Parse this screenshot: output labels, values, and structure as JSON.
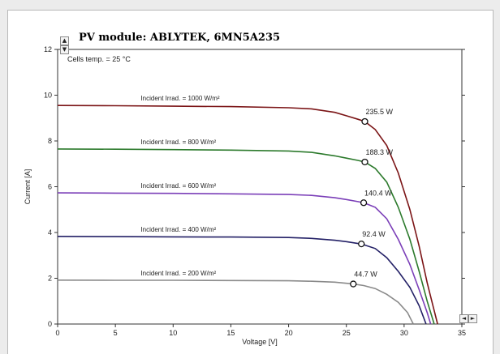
{
  "chart_data": {
    "type": "line",
    "title": "PV module: ABLYTEK, 6MN5A235",
    "annotation": "Cells temp. = 25 °C",
    "xlabel": "Voltage [V]",
    "ylabel": "Current [A]",
    "xlim": [
      0,
      35
    ],
    "ylim": [
      0,
      12
    ],
    "xticks": [
      0,
      5,
      10,
      15,
      20,
      25,
      30,
      35
    ],
    "yticks": [
      0,
      2,
      4,
      6,
      8,
      10,
      12
    ],
    "grid": false,
    "series": [
      {
        "name": "Incident Irrad. = 1000 W/m²",
        "color": "#7b1416",
        "points": [
          [
            0,
            9.55
          ],
          [
            5,
            9.54
          ],
          [
            10,
            9.52
          ],
          [
            15,
            9.5
          ],
          [
            20,
            9.45
          ],
          [
            22,
            9.4
          ],
          [
            24,
            9.25
          ],
          [
            25,
            9.1
          ],
          [
            26,
            8.95
          ],
          [
            26.6,
            8.85
          ],
          [
            27.5,
            8.5
          ],
          [
            28.5,
            7.8
          ],
          [
            29.5,
            6.6
          ],
          [
            30.5,
            5.0
          ],
          [
            31.3,
            3.4
          ],
          [
            32,
            1.8
          ],
          [
            32.5,
            0.8
          ],
          [
            32.9,
            0
          ]
        ],
        "mpp": [
          26.6,
          8.85
        ],
        "power_label": "235.5 W"
      },
      {
        "name": "Incident Irrad. = 800 W/m²",
        "color": "#2c7a2c",
        "points": [
          [
            0,
            7.65
          ],
          [
            5,
            7.64
          ],
          [
            10,
            7.62
          ],
          [
            15,
            7.6
          ],
          [
            20,
            7.56
          ],
          [
            22,
            7.5
          ],
          [
            24,
            7.35
          ],
          [
            25,
            7.25
          ],
          [
            26,
            7.15
          ],
          [
            26.6,
            7.08
          ],
          [
            27.5,
            6.8
          ],
          [
            28.5,
            6.2
          ],
          [
            29.5,
            5.1
          ],
          [
            30.5,
            3.7
          ],
          [
            31.3,
            2.3
          ],
          [
            32,
            1.0
          ],
          [
            32.6,
            0
          ]
        ],
        "mpp": [
          26.6,
          7.08
        ],
        "power_label": "188.3 W"
      },
      {
        "name": "Incident Irrad. = 600 W/m²",
        "color": "#7b3fb8",
        "points": [
          [
            0,
            5.73
          ],
          [
            5,
            5.72
          ],
          [
            10,
            5.71
          ],
          [
            15,
            5.69
          ],
          [
            20,
            5.66
          ],
          [
            22,
            5.62
          ],
          [
            24,
            5.52
          ],
          [
            25,
            5.44
          ],
          [
            26,
            5.35
          ],
          [
            26.5,
            5.3
          ],
          [
            27.5,
            5.1
          ],
          [
            28.5,
            4.6
          ],
          [
            29.5,
            3.7
          ],
          [
            30.5,
            2.6
          ],
          [
            31.3,
            1.5
          ],
          [
            32,
            0.5
          ],
          [
            32.3,
            0
          ]
        ],
        "mpp": [
          26.5,
          5.3
        ],
        "power_label": "140.4 W"
      },
      {
        "name": "Incident Irrad. = 400 W/m²",
        "color": "#232066",
        "points": [
          [
            0,
            3.83
          ],
          [
            5,
            3.82
          ],
          [
            10,
            3.81
          ],
          [
            15,
            3.8
          ],
          [
            20,
            3.78
          ],
          [
            22,
            3.74
          ],
          [
            24,
            3.66
          ],
          [
            25,
            3.6
          ],
          [
            26,
            3.52
          ],
          [
            26.3,
            3.5
          ],
          [
            27.5,
            3.3
          ],
          [
            28.5,
            2.9
          ],
          [
            29.5,
            2.3
          ],
          [
            30.5,
            1.6
          ],
          [
            31.3,
            0.8
          ],
          [
            31.9,
            0
          ]
        ],
        "mpp": [
          26.3,
          3.5
        ],
        "power_label": "92.4 W"
      },
      {
        "name": "Incident Irrad. = 200 W/m²",
        "color": "#8a8a8a",
        "points": [
          [
            0,
            1.92
          ],
          [
            5,
            1.91
          ],
          [
            10,
            1.91
          ],
          [
            15,
            1.9
          ],
          [
            20,
            1.89
          ],
          [
            22,
            1.87
          ],
          [
            24,
            1.83
          ],
          [
            25,
            1.78
          ],
          [
            25.6,
            1.75
          ],
          [
            26.5,
            1.68
          ],
          [
            27.5,
            1.55
          ],
          [
            28.5,
            1.3
          ],
          [
            29.5,
            0.95
          ],
          [
            30.3,
            0.5
          ],
          [
            30.8,
            0
          ]
        ],
        "mpp": [
          25.6,
          1.75
        ],
        "power_label": "44.7 W"
      }
    ]
  },
  "controls": {
    "spin_up": "▲",
    "spin_down": "▼",
    "scroll_left": "◄",
    "scroll_right": "►"
  }
}
